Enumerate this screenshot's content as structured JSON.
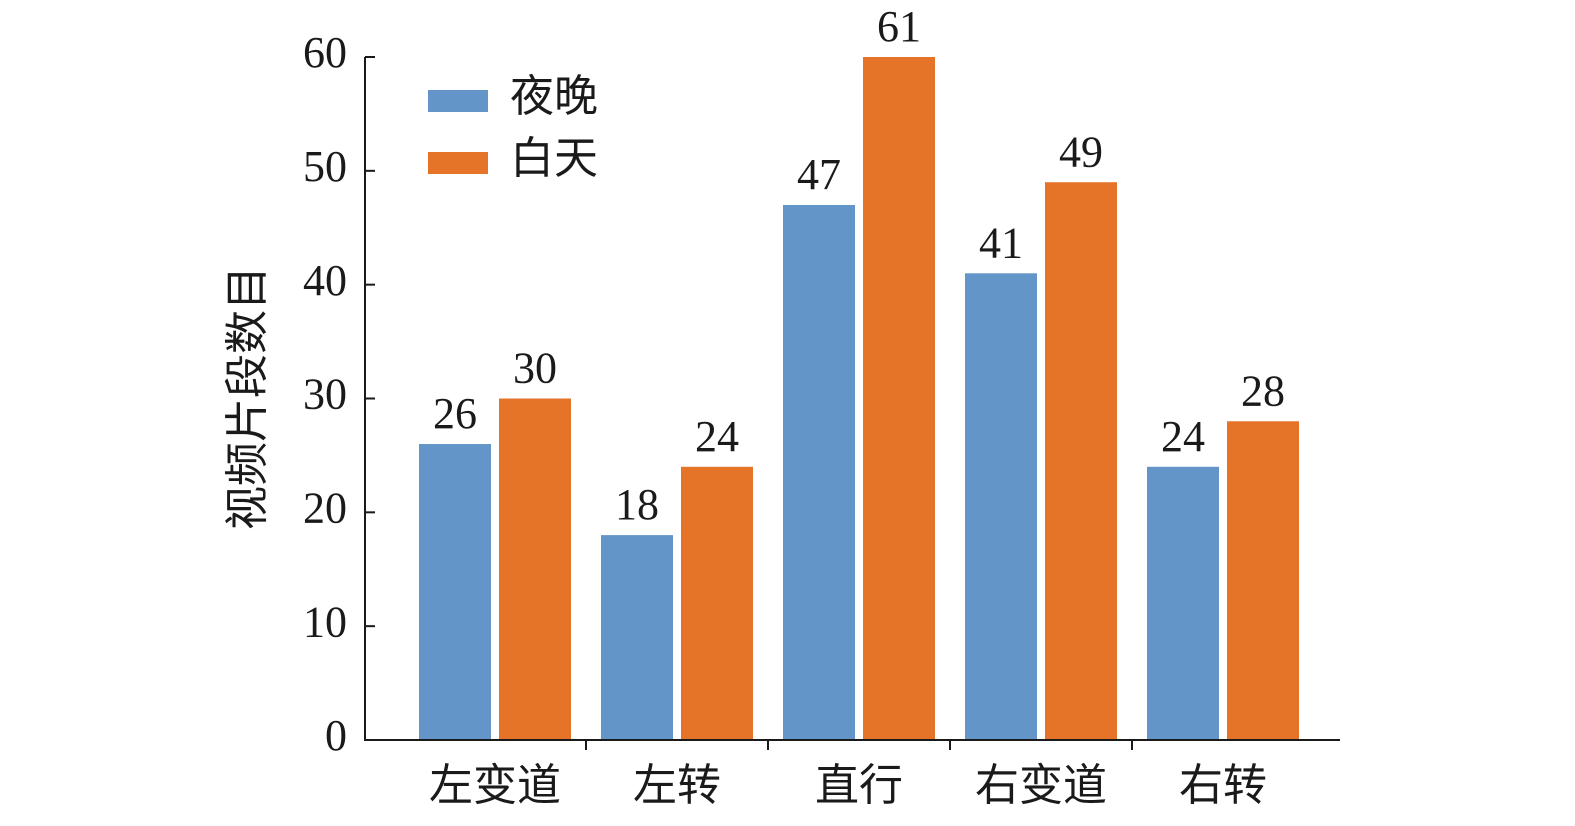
{
  "chart_data": {
    "type": "bar",
    "y_label": "视频片段数目",
    "categories": [
      "左变道",
      "左转",
      "直行",
      "右变道",
      "右转"
    ],
    "series": [
      {
        "name": "夜晚",
        "color": "#6495c8",
        "values": [
          26,
          18,
          47,
          41,
          24
        ]
      },
      {
        "name": "白天",
        "color": "#e57428",
        "values": [
          30,
          24,
          61,
          49,
          28
        ]
      }
    ],
    "ylim": [
      0,
      60
    ],
    "yticks": [
      0,
      10,
      20,
      30,
      40,
      50,
      60
    ],
    "legend": "upper left"
  }
}
